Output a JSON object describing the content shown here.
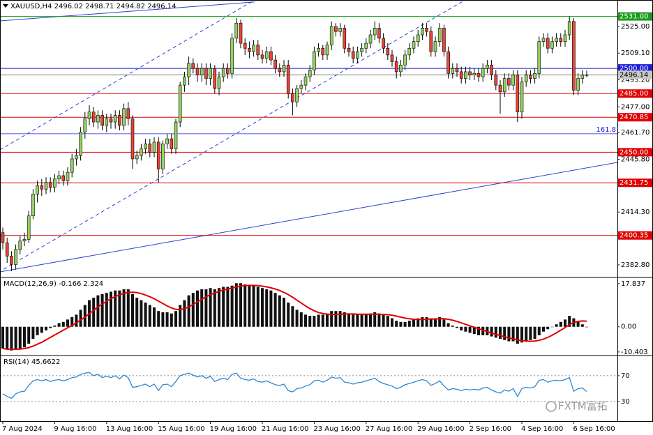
{
  "watermark": "FXTM富拓",
  "chart_data": [
    {
      "type": "candlestick",
      "title": "XAUUSD,H4  2496.02 2498.71 2494.82 2496.14",
      "categories": [
        "7 Aug 2024",
        null,
        null,
        null,
        null,
        null,
        null,
        null,
        null,
        null,
        null,
        null,
        "9 Aug 16:00",
        null,
        null,
        null,
        null,
        null,
        null,
        null,
        null,
        null,
        null,
        null,
        "13 Aug 16:00",
        null,
        null,
        null,
        null,
        null,
        null,
        null,
        null,
        null,
        null,
        null,
        "15 Aug 16:00",
        null,
        null,
        null,
        null,
        null,
        null,
        null,
        null,
        null,
        null,
        null,
        "19 Aug 16:00",
        null,
        null,
        null,
        null,
        null,
        null,
        null,
        null,
        null,
        null,
        null,
        "21 Aug 16:00",
        null,
        null,
        null,
        null,
        null,
        null,
        null,
        null,
        null,
        null,
        null,
        "23 Aug 16:00",
        null,
        null,
        null,
        null,
        null,
        null,
        null,
        null,
        null,
        null,
        null,
        "27 Aug 16:00",
        null,
        null,
        null,
        null,
        null,
        null,
        null,
        null,
        null,
        null,
        null,
        "29 Aug 16:00",
        null,
        null,
        null,
        null,
        null,
        null,
        null,
        null,
        null,
        null,
        null,
        "2 Sep 16:00",
        null,
        null,
        null,
        null,
        null,
        null,
        null,
        null,
        null,
        null,
        null,
        "4 Sep 16:00",
        null,
        null,
        null,
        null,
        null,
        null,
        null,
        null,
        null,
        null,
        null,
        "6 Sep 16:00",
        null,
        null,
        null
      ],
      "open": [
        2402,
        2396,
        2388,
        2383,
        2392,
        2397,
        2398,
        2412,
        2425,
        2430,
        2428,
        2432,
        2429,
        2434,
        2436,
        2433,
        2438,
        2446,
        2448,
        2462,
        2470,
        2474,
        2468,
        2472,
        2466,
        2470,
        2468,
        2472,
        2466,
        2476,
        2470,
        2446,
        2448,
        2452,
        2455,
        2450,
        2456,
        2440,
        2455,
        2458,
        2452,
        2468,
        2490,
        2495,
        2503,
        2500,
        2496,
        2500,
        2494,
        2500,
        2488,
        2495,
        2500,
        2497,
        2518,
        2527,
        2515,
        2512,
        2510,
        2514,
        2508,
        2506,
        2510,
        2505,
        2500,
        2498,
        2502,
        2485,
        2480,
        2488,
        2490,
        2495,
        2499,
        2510,
        2512,
        2508,
        2514,
        2525,
        2522,
        2524,
        2512,
        2510,
        2506,
        2510,
        2512,
        2515,
        2520,
        2524,
        2518,
        2512,
        2508,
        2504,
        2498,
        2502,
        2508,
        2512,
        2516,
        2520,
        2524,
        2522,
        2510,
        2516,
        2524,
        2510,
        2497,
        2500,
        2498,
        2494,
        2498,
        2496,
        2497,
        2495,
        2500,
        2502,
        2496,
        2490,
        2486,
        2494,
        2490,
        2496,
        2474,
        2492,
        2496,
        2494,
        2497,
        2516,
        2518,
        2512,
        2516,
        2518,
        2516,
        2520,
        2528,
        2487,
        2494,
        2496.02
      ],
      "high": [
        2405,
        2399,
        2391,
        2395,
        2400,
        2402,
        2415,
        2428,
        2433,
        2434,
        2435,
        2435,
        2437,
        2439,
        2439,
        2441,
        2449,
        2452,
        2465,
        2474,
        2478,
        2477,
        2475,
        2475,
        2473,
        2473,
        2475,
        2475,
        2479,
        2480,
        2472,
        2451,
        2455,
        2458,
        2458,
        2459,
        2459,
        2457,
        2461,
        2461,
        2470,
        2492,
        2498,
        2507,
        2506,
        2503,
        2503,
        2503,
        2503,
        2502,
        2498,
        2503,
        2503,
        2521,
        2530,
        2529,
        2518,
        2516,
        2517,
        2517,
        2511,
        2513,
        2513,
        2508,
        2503,
        2505,
        2505,
        2488,
        2490,
        2493,
        2497,
        2502,
        2513,
        2515,
        2514,
        2516,
        2528,
        2527,
        2527,
        2526,
        2515,
        2513,
        2513,
        2515,
        2518,
        2523,
        2528,
        2527,
        2521,
        2515,
        2511,
        2507,
        2505,
        2511,
        2515,
        2519,
        2523,
        2527,
        2527,
        2525,
        2519,
        2527,
        2526,
        2513,
        2503,
        2503,
        2501,
        2501,
        2501,
        2500,
        2500,
        2503,
        2505,
        2505,
        2499,
        2493,
        2497,
        2497,
        2499,
        2499,
        2495,
        2499,
        2499,
        2500,
        2519,
        2521,
        2521,
        2519,
        2521,
        2521,
        2523,
        2531,
        2530,
        2497,
        2499,
        2498.71
      ],
      "low": [
        2392,
        2384,
        2379,
        2380,
        2389,
        2394,
        2396,
        2410,
        2420,
        2424,
        2425,
        2426,
        2426,
        2431,
        2430,
        2430,
        2435,
        2442,
        2445,
        2458,
        2466,
        2465,
        2464,
        2463,
        2462,
        2464,
        2464,
        2463,
        2463,
        2466,
        2440,
        2443,
        2445,
        2449,
        2447,
        2447,
        2432,
        2437,
        2452,
        2449,
        2449,
        2465,
        2486,
        2490,
        2497,
        2492,
        2492,
        2490,
        2490,
        2485,
        2484,
        2492,
        2494,
        2494,
        2515,
        2512,
        2508,
        2506,
        2507,
        2505,
        2503,
        2503,
        2502,
        2497,
        2495,
        2495,
        2482,
        2472,
        2477,
        2485,
        2487,
        2492,
        2496,
        2507,
        2505,
        2505,
        2511,
        2519,
        2519,
        2509,
        2507,
        2503,
        2503,
        2507,
        2509,
        2512,
        2517,
        2515,
        2509,
        2505,
        2501,
        2494,
        2495,
        2499,
        2505,
        2509,
        2513,
        2517,
        2519,
        2507,
        2507,
        2513,
        2507,
        2494,
        2494,
        2495,
        2491,
        2491,
        2493,
        2493,
        2492,
        2492,
        2497,
        2493,
        2487,
        2473,
        2483,
        2487,
        2487,
        2468,
        2470,
        2489,
        2491,
        2491,
        2494,
        2513,
        2509,
        2509,
        2513,
        2513,
        2513,
        2517,
        2484,
        2484,
        2491,
        2494.82
      ],
      "close": [
        2396,
        2388,
        2383,
        2392,
        2397,
        2398,
        2412,
        2425,
        2430,
        2428,
        2432,
        2429,
        2434,
        2436,
        2433,
        2438,
        2446,
        2448,
        2462,
        2470,
        2474,
        2468,
        2472,
        2466,
        2470,
        2468,
        2472,
        2466,
        2476,
        2470,
        2446,
        2448,
        2452,
        2455,
        2450,
        2456,
        2440,
        2455,
        2458,
        2452,
        2468,
        2490,
        2495,
        2503,
        2500,
        2496,
        2500,
        2494,
        2500,
        2488,
        2495,
        2500,
        2497,
        2518,
        2527,
        2515,
        2512,
        2510,
        2514,
        2508,
        2506,
        2510,
        2505,
        2500,
        2498,
        2502,
        2485,
        2480,
        2488,
        2490,
        2495,
        2499,
        2510,
        2512,
        2508,
        2514,
        2525,
        2522,
        2524,
        2512,
        2510,
        2506,
        2510,
        2512,
        2515,
        2520,
        2524,
        2518,
        2512,
        2508,
        2504,
        2498,
        2502,
        2508,
        2512,
        2516,
        2520,
        2524,
        2522,
        2510,
        2516,
        2524,
        2510,
        2497,
        2500,
        2498,
        2494,
        2498,
        2496,
        2497,
        2495,
        2500,
        2502,
        2496,
        2490,
        2486,
        2494,
        2490,
        2496,
        2474,
        2492,
        2496,
        2494,
        2497,
        2516,
        2518,
        2512,
        2516,
        2518,
        2516,
        2520,
        2528,
        2487,
        2494,
        2496,
        2496.14
      ],
      "bull_color": "#93d160",
      "bear_color": "#e4453a",
      "ylim": [
        2375.7,
        2540.8
      ],
      "yticks": [
        {
          "value": 2525,
          "label": "2525.00"
        },
        {
          "value": 2509.1,
          "label": "2509.10"
        },
        {
          "value": 2493.2,
          "label": "2493.20"
        },
        {
          "value": 2477,
          "label": "2477.00"
        },
        {
          "value": 2461.7,
          "label": "2461.70"
        },
        {
          "value": 2445.8,
          "label": "2445.80"
        },
        {
          "value": 2414.3,
          "label": "2414.30"
        },
        {
          "value": 2382.8,
          "label": "2382.80"
        }
      ],
      "grid": false,
      "levels": [
        {
          "value": 2531,
          "label": "2531.00",
          "color": "#1a9a1a"
        },
        {
          "value": 2500,
          "label": "2500.00",
          "color": "#1c1cd8"
        },
        {
          "value": 2485,
          "label": "2485.00",
          "color": "#e00000"
        },
        {
          "value": 2470.85,
          "label": "2470.85",
          "color": "#e00000"
        },
        {
          "value": 2450,
          "label": "2450.00",
          "color": "#e00000"
        },
        {
          "value": 2431.75,
          "label": "2431.75",
          "color": "#e00000"
        },
        {
          "value": 2400.35,
          "label": "2400.35",
          "color": "#e00000"
        }
      ],
      "fibo": {
        "price": 2461,
        "level": 161.8,
        "color": "#1c1cd8"
      },
      "last_price": 2496.14,
      "trendlines": [
        {
          "style": "dashed",
          "color": "#2b3fd6",
          "points": [
            [
              -0.65,
              2451.4
            ],
            [
              58.2,
              2540.8
            ]
          ]
        },
        {
          "style": "dashed",
          "color": "#2b3fd6",
          "points": [
            [
              0.2,
              2380.2
            ],
            [
              106.6,
              2540.4
            ]
          ]
        },
        {
          "style": "solid",
          "color": "#2b3fd6",
          "points": [
            [
              -0.65,
              2528.3
            ],
            [
              58.2,
              2539.6
            ]
          ]
        },
        {
          "style": "solid",
          "color": "#2b3fd6",
          "points": [
            [
              -0.65,
              2378.6
            ],
            [
              142.1,
              2443.9
            ]
          ]
        }
      ]
    },
    {
      "type": "macd",
      "title": "MACD(12,26,9) -0.166 2.324",
      "histogram": [
        -9,
        -9.5,
        -9.8,
        -9.5,
        -9,
        -8.5,
        -7,
        -5,
        -3.5,
        -2.5,
        -1.5,
        -0.5,
        0.5,
        1.5,
        2,
        3,
        4,
        5,
        7,
        9,
        11,
        12,
        13,
        13.5,
        14,
        14.5,
        15,
        15,
        15.5,
        15.5,
        13.5,
        12,
        11,
        10,
        9,
        8,
        6.5,
        6,
        6,
        5.5,
        6.5,
        9,
        11,
        13,
        14,
        15,
        15.5,
        15.5,
        16,
        15.5,
        16,
        16.5,
        16.5,
        17,
        18,
        18,
        17.5,
        17,
        17,
        16.5,
        16,
        15.5,
        15,
        14,
        13,
        12,
        10,
        8.5,
        7,
        6,
        5,
        4.5,
        4.5,
        5,
        5,
        5.5,
        6.5,
        6.5,
        6.5,
        6,
        5.5,
        5,
        5,
        5,
        5,
        5.5,
        6,
        5.5,
        5,
        4.5,
        3.5,
        2.5,
        2,
        2,
        2.5,
        3,
        3.5,
        4,
        4,
        3.5,
        3.5,
        4,
        3,
        1.5,
        0.5,
        -0.5,
        -1.5,
        -2,
        -2.5,
        -3,
        -3.5,
        -3.5,
        -3.5,
        -4,
        -4.5,
        -5,
        -5.5,
        -6,
        -6,
        -7,
        -6.5,
        -6,
        -5.5,
        -5,
        -3.5,
        -2,
        -1,
        0,
        1,
        2,
        3,
        4.5,
        3.5,
        2,
        1,
        -0.166
      ],
      "signal": [
        -9,
        -9.2,
        -9.3,
        -9.3,
        -9.2,
        -9,
        -8.6,
        -8,
        -7.2,
        -6.4,
        -5.4,
        -4.4,
        -3.4,
        -2.4,
        -1.4,
        -0.4,
        0.6,
        1.6,
        2.8,
        4,
        5.4,
        6.8,
        8.2,
        9.4,
        10.6,
        11.6,
        12.5,
        13.2,
        13.8,
        14.2,
        14.3,
        14.1,
        13.7,
        13.1,
        12.4,
        11.6,
        10.6,
        9.6,
        8.6,
        7.8,
        7.2,
        7.1,
        7.5,
        8.2,
        9.2,
        10.3,
        11.4,
        12.4,
        13.3,
        14,
        14.6,
        15.2,
        15.6,
        16,
        16.4,
        16.8,
        17,
        17.1,
        17.1,
        17,
        16.8,
        16.5,
        16.1,
        15.6,
        15,
        14.2,
        13.3,
        12.2,
        11,
        9.8,
        8.6,
        7.5,
        6.6,
        5.9,
        5.5,
        5.2,
        5.1,
        5.1,
        5.2,
        5.3,
        5.3,
        5.3,
        5.2,
        5.2,
        5.2,
        5.2,
        5.2,
        5.2,
        5.1,
        5,
        4.8,
        4.4,
        4,
        3.6,
        3.3,
        3.1,
        3,
        3,
        3.1,
        3.2,
        3.2,
        3.3,
        3.3,
        3.1,
        2.7,
        2.2,
        1.6,
        1,
        0.4,
        -0.2,
        -0.8,
        -1.4,
        -2,
        -2.6,
        -3.1,
        -3.6,
        -4.1,
        -4.6,
        -5,
        -5.4,
        -5.7,
        -5.9,
        -6,
        -5.9,
        -5.6,
        -5.1,
        -4.4,
        -3.5,
        -2.5,
        -1.4,
        -0.3,
        0.9,
        1.8,
        2.2,
        2.4,
        2.324
      ],
      "histogram_color": "#111111",
      "signal_color": "#e00000",
      "ylim": [
        -11.6,
        20.1
      ],
      "yticks": [
        17.837,
        {
          "value": 0,
          "label": "0.00"
        },
        -10.403
      ],
      "grid": false
    },
    {
      "type": "rsi",
      "title": "RSI(14) 45.6622",
      "values": [
        42,
        38,
        35,
        42,
        45,
        46,
        55,
        62,
        64,
        62,
        64,
        61,
        63,
        64,
        62,
        64,
        67,
        68,
        72,
        74,
        75,
        70,
        72,
        67,
        69,
        67,
        70,
        65,
        71,
        67,
        52,
        53,
        55,
        57,
        53,
        57,
        47,
        56,
        57,
        53,
        61,
        70,
        72,
        74,
        71,
        68,
        70,
        66,
        69,
        61,
        64,
        66,
        64,
        72,
        74,
        66,
        64,
        63,
        65,
        61,
        60,
        62,
        59,
        56,
        55,
        57,
        47,
        45,
        50,
        51,
        54,
        56,
        62,
        63,
        60,
        63,
        68,
        66,
        67,
        60,
        59,
        57,
        59,
        60,
        62,
        64,
        66,
        61,
        58,
        56,
        54,
        50,
        52,
        56,
        58,
        60,
        62,
        64,
        62,
        55,
        58,
        62,
        54,
        48,
        50,
        49,
        47,
        49,
        48,
        49,
        48,
        51,
        52,
        48,
        45,
        43,
        48,
        46,
        50,
        38,
        50,
        52,
        51,
        53,
        63,
        64,
        60,
        62,
        63,
        62,
        64,
        67,
        46,
        50,
        51,
        45.6622
      ],
      "color": "#2f86d6",
      "ylim": [
        0,
        100
      ],
      "yticks": [
        70,
        30
      ],
      "grid": true
    }
  ]
}
